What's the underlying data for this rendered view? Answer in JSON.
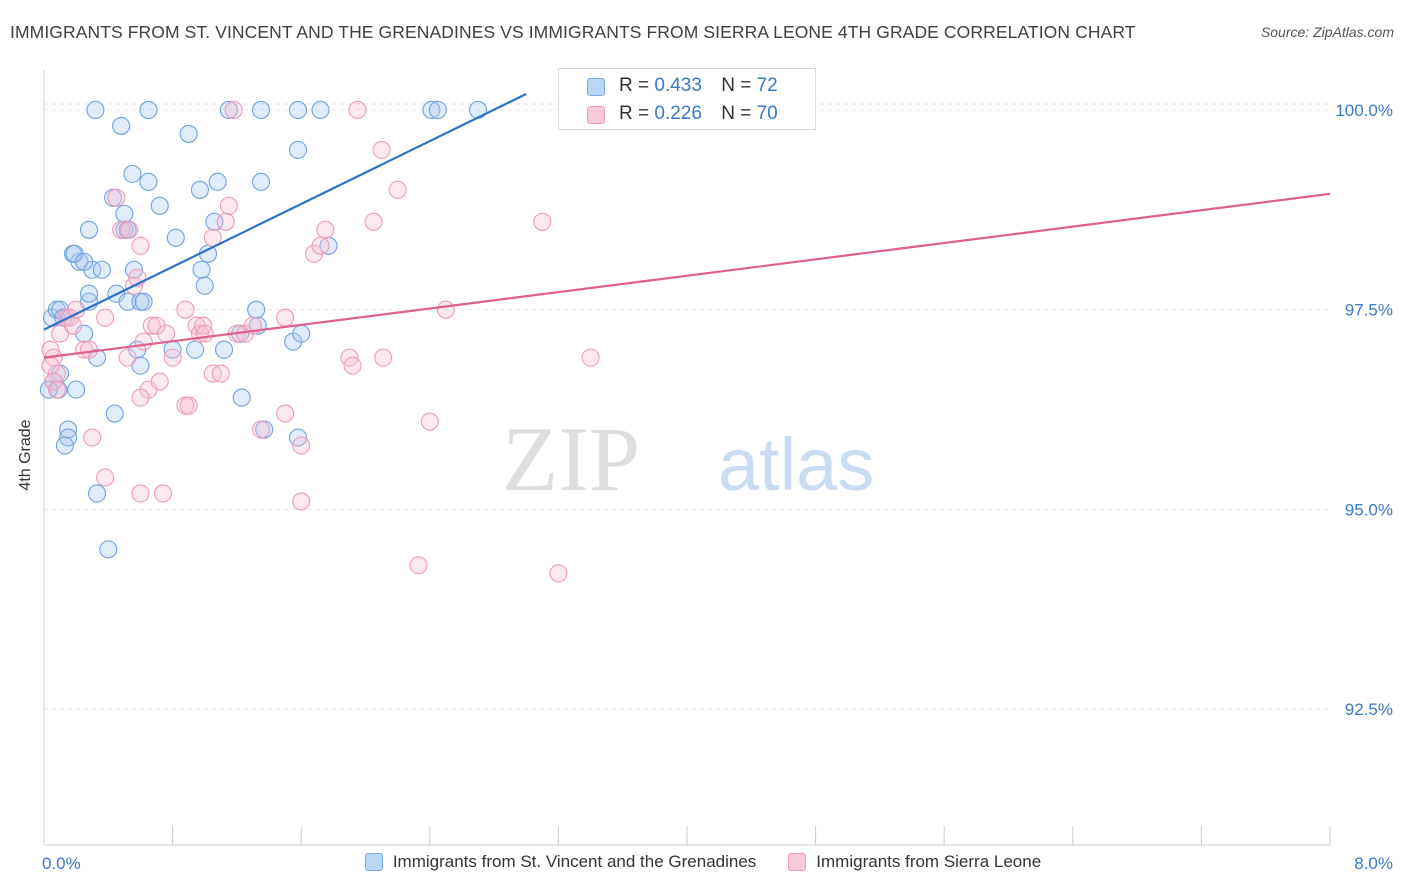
{
  "title": "IMMIGRANTS FROM ST. VINCENT AND THE GRENADINES VS IMMIGRANTS FROM SIERRA LEONE 4TH GRADE CORRELATION CHART",
  "source": "Source: ZipAtlas.com",
  "watermark": {
    "zip": "ZIP",
    "atlas": "atlas"
  },
  "stats": [
    {
      "r_label": "R = ",
      "r_value": "0.433",
      "n_label": "N = ",
      "n_value": "72"
    },
    {
      "r_label": "R = ",
      "r_value": "0.226",
      "n_label": "N = ",
      "n_value": "70"
    }
  ],
  "chart_data": {
    "type": "scatter",
    "xlabel": "",
    "ylabel": "4th Grade",
    "xlim": [
      0,
      8
    ],
    "ylim": [
      90.8,
      100.5
    ],
    "x_tick_labels": [
      {
        "value": 0,
        "label": "0.0%"
      },
      {
        "value": 8,
        "label": "8.0%"
      }
    ],
    "y_tick_labels": [
      {
        "value": 100,
        "label": "100.0%"
      },
      {
        "value": 97.5,
        "label": "97.5%"
      },
      {
        "value": 95,
        "label": "95.0%"
      },
      {
        "value": 92.5,
        "label": "92.5%"
      }
    ],
    "grid": true,
    "legend_position": "bottom",
    "colors": {
      "blue": "#6fa2e0",
      "blue_line": "#2f72c9",
      "pink": "#ef9bb8",
      "pink_line": "#e0608c",
      "tick_label": "#3a78c9"
    },
    "series": [
      {
        "name": "Immigrants from St. Vincent and the Grenadines",
        "color": "#6fa2e0",
        "trend": {
          "x": [
            0,
            3.0
          ],
          "y": [
            97.25,
            100.2
          ]
        },
        "points": [
          [
            0.05,
            97.4
          ],
          [
            0.08,
            97.5
          ],
          [
            0.1,
            97.5
          ],
          [
            0.12,
            97.4
          ],
          [
            0.06,
            96.6
          ],
          [
            0.09,
            96.5
          ],
          [
            0.03,
            96.5
          ],
          [
            0.1,
            96.7
          ],
          [
            0.15,
            96.0
          ],
          [
            0.15,
            95.9
          ],
          [
            0.13,
            95.8
          ],
          [
            0.2,
            96.5
          ],
          [
            0.25,
            97.2
          ],
          [
            0.28,
            97.6
          ],
          [
            0.22,
            98.1
          ],
          [
            0.28,
            98.5
          ],
          [
            0.3,
            98.0
          ],
          [
            0.18,
            98.2
          ],
          [
            0.19,
            98.2
          ],
          [
            0.25,
            98.1
          ],
          [
            0.28,
            97.7
          ],
          [
            0.33,
            96.9
          ],
          [
            0.36,
            98.0
          ],
          [
            0.43,
            98.9
          ],
          [
            0.5,
            98.5
          ],
          [
            0.5,
            98.7
          ],
          [
            0.52,
            98.5
          ],
          [
            0.45,
            97.7
          ],
          [
            0.52,
            97.6
          ],
          [
            0.56,
            98.0
          ],
          [
            0.6,
            97.6
          ],
          [
            0.62,
            97.6
          ],
          [
            0.58,
            97.0
          ],
          [
            0.6,
            96.8
          ],
          [
            0.44,
            96.2
          ],
          [
            0.33,
            95.2
          ],
          [
            0.4,
            94.5
          ],
          [
            0.32,
            100.0
          ],
          [
            0.48,
            99.8
          ],
          [
            0.55,
            99.2
          ],
          [
            0.65,
            99.1
          ],
          [
            0.72,
            98.8
          ],
          [
            0.82,
            98.4
          ],
          [
            0.8,
            97.0
          ],
          [
            0.65,
            100.0
          ],
          [
            0.9,
            99.7
          ],
          [
            0.97,
            99.0
          ],
          [
            1.08,
            99.1
          ],
          [
            1.06,
            98.6
          ],
          [
            0.98,
            98.0
          ],
          [
            1.0,
            97.8
          ],
          [
            1.02,
            98.2
          ],
          [
            0.94,
            97.0
          ],
          [
            1.12,
            97.0
          ],
          [
            1.15,
            100.0
          ],
          [
            1.35,
            100.0
          ],
          [
            1.33,
            97.3
          ],
          [
            1.35,
            99.1
          ],
          [
            1.32,
            97.5
          ],
          [
            1.22,
            97.2
          ],
          [
            1.23,
            96.4
          ],
          [
            1.37,
            96.0
          ],
          [
            1.55,
            97.1
          ],
          [
            1.58,
            95.9
          ],
          [
            1.58,
            99.5
          ],
          [
            1.6,
            97.2
          ],
          [
            1.58,
            100.0
          ],
          [
            1.72,
            100.0
          ],
          [
            1.77,
            98.3
          ],
          [
            2.41,
            100.0
          ],
          [
            2.45,
            100.0
          ],
          [
            2.7,
            100.0
          ]
        ]
      },
      {
        "name": "Immigrants from Sierra Leone",
        "color": "#ef9bb8",
        "trend": {
          "x": [
            0,
            8.0
          ],
          "y": [
            96.9,
            98.95
          ]
        },
        "points": [
          [
            0.04,
            97.0
          ],
          [
            0.06,
            96.9
          ],
          [
            0.08,
            96.7
          ],
          [
            0.1,
            97.2
          ],
          [
            0.14,
            97.4
          ],
          [
            0.16,
            97.4
          ],
          [
            0.18,
            97.3
          ],
          [
            0.2,
            97.5
          ],
          [
            0.04,
            96.8
          ],
          [
            0.06,
            96.6
          ],
          [
            0.08,
            96.5
          ],
          [
            0.25,
            97.0
          ],
          [
            0.28,
            97.0
          ],
          [
            0.3,
            95.9
          ],
          [
            0.38,
            95.4
          ],
          [
            0.38,
            97.4
          ],
          [
            0.45,
            98.9
          ],
          [
            0.48,
            98.5
          ],
          [
            0.53,
            98.5
          ],
          [
            0.56,
            97.8
          ],
          [
            0.58,
            97.9
          ],
          [
            0.6,
            98.3
          ],
          [
            0.52,
            96.9
          ],
          [
            0.62,
            97.1
          ],
          [
            0.65,
            96.5
          ],
          [
            0.67,
            97.3
          ],
          [
            0.7,
            97.3
          ],
          [
            0.6,
            96.4
          ],
          [
            0.72,
            96.6
          ],
          [
            0.6,
            95.2
          ],
          [
            0.74,
            95.2
          ],
          [
            0.76,
            97.2
          ],
          [
            0.8,
            96.9
          ],
          [
            0.88,
            97.5
          ],
          [
            0.88,
            96.3
          ],
          [
            0.9,
            96.3
          ],
          [
            0.95,
            97.3
          ],
          [
            0.97,
            97.2
          ],
          [
            0.99,
            97.3
          ],
          [
            1.0,
            97.2
          ],
          [
            1.05,
            98.4
          ],
          [
            1.05,
            96.7
          ],
          [
            1.1,
            96.7
          ],
          [
            1.15,
            98.8
          ],
          [
            1.13,
            98.6
          ],
          [
            1.18,
            100.0
          ],
          [
            1.2,
            97.2
          ],
          [
            1.25,
            97.2
          ],
          [
            1.3,
            97.3
          ],
          [
            1.35,
            96.0
          ],
          [
            1.5,
            97.4
          ],
          [
            1.5,
            96.2
          ],
          [
            1.6,
            95.8
          ],
          [
            1.6,
            95.1
          ],
          [
            1.68,
            98.2
          ],
          [
            1.72,
            98.3
          ],
          [
            1.75,
            98.5
          ],
          [
            1.9,
            96.9
          ],
          [
            1.92,
            96.8
          ],
          [
            1.95,
            100.0
          ],
          [
            2.05,
            98.6
          ],
          [
            2.1,
            99.5
          ],
          [
            2.11,
            96.9
          ],
          [
            2.2,
            99.0
          ],
          [
            2.33,
            94.3
          ],
          [
            2.4,
            96.1
          ],
          [
            2.5,
            97.5
          ],
          [
            3.1,
            98.6
          ],
          [
            3.2,
            94.2
          ],
          [
            3.4,
            96.9
          ]
        ]
      }
    ]
  }
}
